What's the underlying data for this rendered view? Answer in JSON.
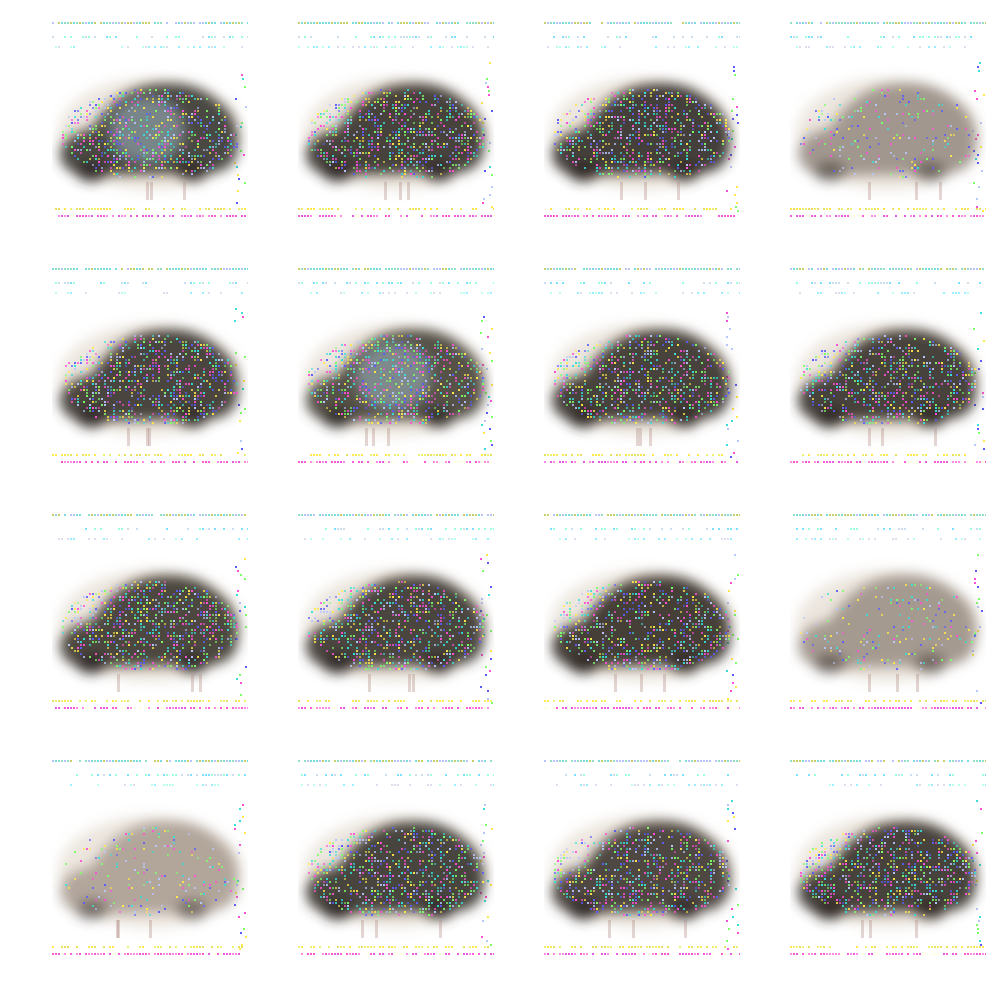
{
  "grid": {
    "rows": 4,
    "columns": 4,
    "background": "#ffffff"
  },
  "samples": [
    {
      "row": 1,
      "col": 1,
      "tone": "bright-core",
      "body_color": "#3e3a34"
    },
    {
      "row": 1,
      "col": 2,
      "tone": "noisy",
      "body_color": "#3a3530"
    },
    {
      "row": 1,
      "col": 3,
      "tone": "noisy",
      "body_color": "#36322e"
    },
    {
      "row": 1,
      "col": 4,
      "tone": "faded",
      "body_color": "#6f6358"
    },
    {
      "row": 2,
      "col": 1,
      "tone": "noisy",
      "body_color": "#3d3731"
    },
    {
      "row": 2,
      "col": 2,
      "tone": "bright-core",
      "body_color": "#4a443d"
    },
    {
      "row": 2,
      "col": 3,
      "tone": "noisy",
      "body_color": "#3b352f"
    },
    {
      "row": 2,
      "col": 4,
      "tone": "noisy",
      "body_color": "#39342f"
    },
    {
      "row": 3,
      "col": 1,
      "tone": "noisy",
      "body_color": "#403a33"
    },
    {
      "row": 3,
      "col": 2,
      "tone": "noisy",
      "body_color": "#3e3832"
    },
    {
      "row": 3,
      "col": 3,
      "tone": "noisy",
      "body_color": "#37322d"
    },
    {
      "row": 3,
      "col": 4,
      "tone": "faded",
      "body_color": "#75685c"
    },
    {
      "row": 4,
      "col": 1,
      "tone": "faded",
      "body_color": "#8a7c6e"
    },
    {
      "row": 4,
      "col": 2,
      "tone": "noisy",
      "body_color": "#3c3631"
    },
    {
      "row": 4,
      "col": 3,
      "tone": "noisy",
      "body_color": "#423b34"
    },
    {
      "row": 4,
      "col": 4,
      "tone": "noisy",
      "body_color": "#3a342f"
    }
  ],
  "noise_palette": [
    "#5a5cff",
    "#35e0d8",
    "#ff4fd8",
    "#ffe94a",
    "#7dff6a",
    "#b7c8ff"
  ]
}
